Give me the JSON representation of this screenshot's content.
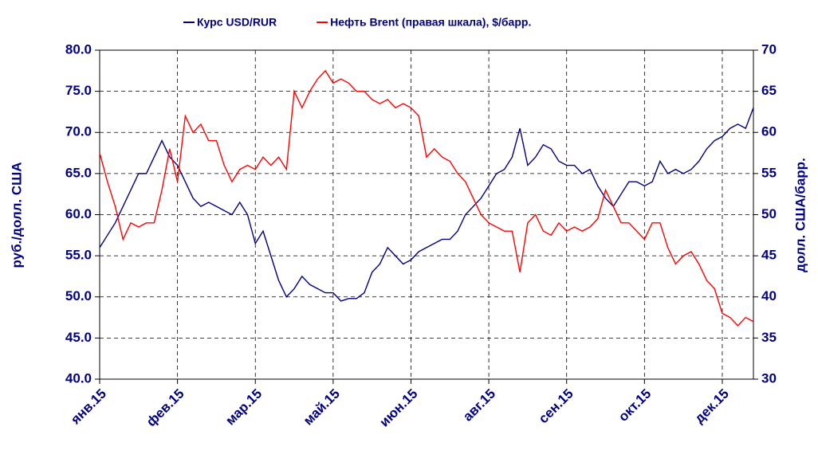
{
  "chart_data": {
    "type": "line",
    "x": [
      0,
      0.1,
      0.2,
      0.3,
      0.4,
      0.5,
      0.6,
      0.7,
      0.8,
      0.9,
      1,
      1.1,
      1.2,
      1.3,
      1.4,
      1.5,
      1.6,
      1.7,
      1.8,
      1.9,
      2,
      2.1,
      2.2,
      2.3,
      2.4,
      2.5,
      2.6,
      2.7,
      2.8,
      2.9,
      3,
      3.1,
      3.2,
      3.3,
      3.4,
      3.5,
      3.6,
      3.7,
      3.8,
      3.9,
      4,
      4.1,
      4.2,
      4.3,
      4.4,
      4.5,
      4.6,
      4.7,
      4.8,
      4.9,
      5,
      5.1,
      5.2,
      5.3,
      5.4,
      5.5,
      5.6,
      5.7,
      5.8,
      5.9,
      6,
      6.1,
      6.2,
      6.3,
      6.4,
      6.5,
      6.6,
      6.7,
      6.8,
      6.9,
      7,
      7.1,
      7.2,
      7.3,
      7.4,
      7.5,
      7.6,
      7.7,
      7.8,
      7.9,
      8,
      8.1,
      8.2,
      8.3,
      8.4
    ],
    "xlim": [
      0,
      8.4
    ],
    "xticks": [
      {
        "value": 0,
        "label": "янв.15"
      },
      {
        "value": 1,
        "label": "фев.15"
      },
      {
        "value": 2,
        "label": "мар.15"
      },
      {
        "value": 3,
        "label": "май.15"
      },
      {
        "value": 4,
        "label": "июн.15"
      },
      {
        "value": 5,
        "label": "авг.15"
      },
      {
        "value": 6,
        "label": "сен.15"
      },
      {
        "value": 7,
        "label": "окт.15"
      },
      {
        "value": 8,
        "label": "дек.15"
      }
    ],
    "ylim": [
      40,
      80
    ],
    "yticks": [
      {
        "value": 40,
        "label": "40.0"
      },
      {
        "value": 45,
        "label": "45.0"
      },
      {
        "value": 50,
        "label": "50.0"
      },
      {
        "value": 55,
        "label": "55.0"
      },
      {
        "value": 60,
        "label": "60.0"
      },
      {
        "value": 65,
        "label": "65.0"
      },
      {
        "value": 70,
        "label": "70.0"
      },
      {
        "value": 75,
        "label": "75.0"
      },
      {
        "value": 80,
        "label": "80.0"
      }
    ],
    "y2lim": [
      30,
      70
    ],
    "y2ticks": [
      30,
      35,
      40,
      45,
      50,
      55,
      60,
      65,
      70
    ],
    "ylabel": "руб./долл. США",
    "y2label": "долл. США/барр.",
    "grid": true,
    "legend": "top",
    "series": [
      {
        "name": "Курс USD/RUR",
        "color": "#000080",
        "values": [
          56,
          57.5,
          59,
          61,
          63,
          65,
          65,
          67,
          69,
          67,
          66,
          64,
          62,
          61,
          61.5,
          61,
          60.5,
          60,
          61.5,
          60,
          56.5,
          58,
          55,
          52,
          50,
          51,
          52.5,
          51.5,
          51,
          50.5,
          50.5,
          49.5,
          49.8,
          49.8,
          50.5,
          53,
          54,
          56,
          55,
          54,
          54.5,
          55.5,
          56,
          56.5,
          57,
          57,
          58,
          60,
          61,
          62,
          63.5,
          65,
          65.5,
          67,
          70.5,
          66,
          67,
          68.5,
          68,
          66.5,
          66,
          66,
          65,
          65.5,
          63.5,
          62,
          61,
          62.5,
          64,
          64,
          63.5,
          64,
          66.5,
          65,
          65.5,
          65,
          65.5,
          66.5,
          68,
          69,
          69.5,
          70.5,
          71,
          70.5,
          73
        ]
      },
      {
        "name": "Нефть Brent (правая шкала), $/барр.",
        "color": "#ff0000",
        "axis": "y2",
        "values": [
          57.5,
          54,
          51,
          47,
          49,
          48.5,
          49,
          49,
          53,
          58,
          54,
          62,
          60,
          61,
          59,
          59,
          56,
          54,
          55.5,
          56,
          55.5,
          57,
          56,
          57,
          55.5,
          65,
          63,
          65,
          66.5,
          67.5,
          66,
          66.5,
          66,
          65,
          65,
          64,
          63.5,
          64,
          63,
          63.5,
          63,
          62,
          57,
          58,
          57,
          56.5,
          55,
          54,
          52,
          50,
          49,
          48.5,
          48,
          48,
          43,
          49,
          50,
          48,
          47.5,
          49,
          48,
          48.5,
          48,
          48.5,
          49.5,
          53,
          51,
          49,
          49,
          48,
          47,
          49,
          49,
          46,
          44,
          45,
          45.5,
          44,
          42,
          41,
          38,
          37.5,
          36.5,
          37.5,
          37
        ]
      }
    ]
  }
}
